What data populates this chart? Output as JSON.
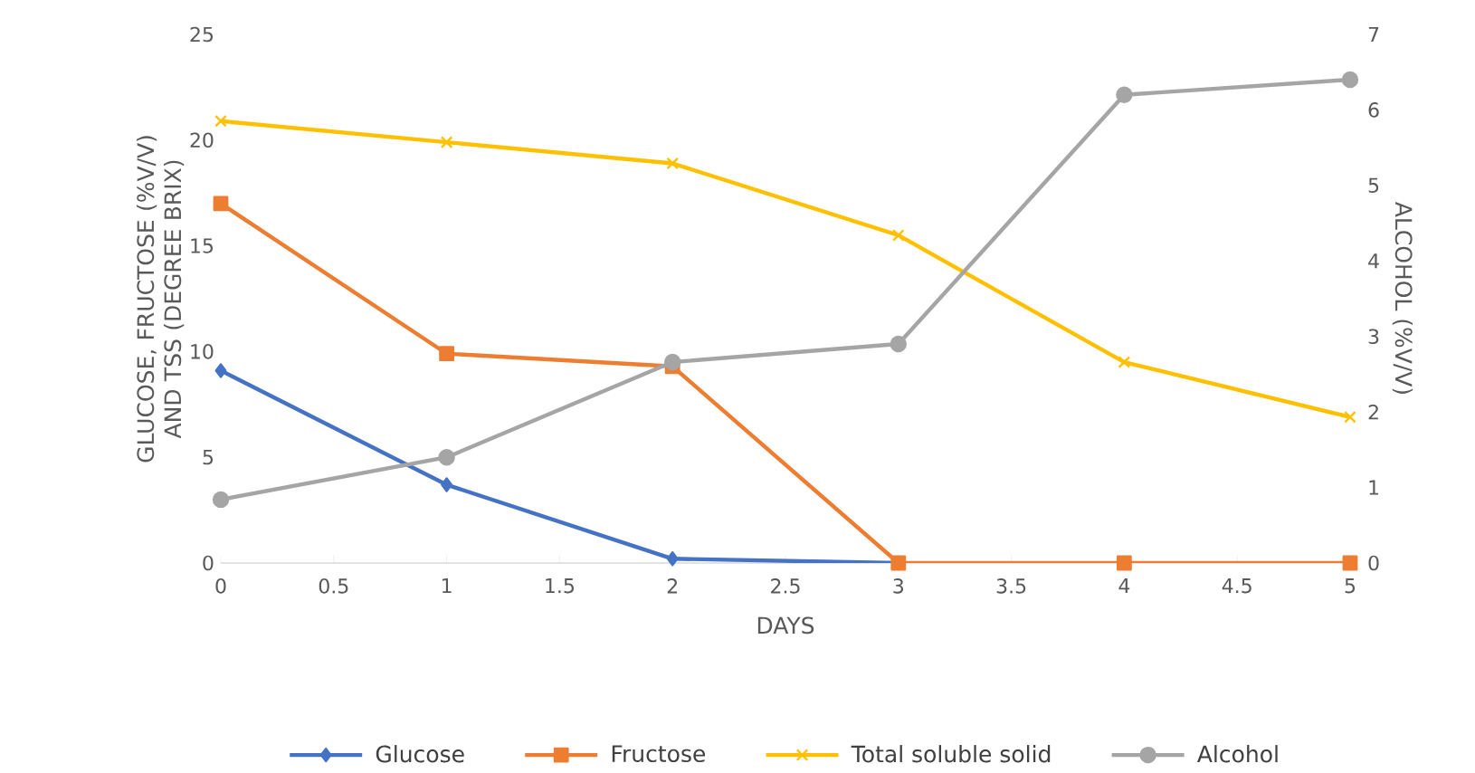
{
  "chart_data": {
    "type": "line",
    "x": [
      0,
      1,
      2,
      3,
      4,
      5
    ],
    "xlabel": "DAYS",
    "ylabel": "GLUCOSE, FRUCTOSE (%V/V) AND TSS (DEGREE BRIX)",
    "y2label": "ALCOHOL (%V/V)",
    "xlim": [
      0,
      5
    ],
    "xticks": [
      0,
      0.5,
      1,
      1.5,
      2,
      2.5,
      3,
      3.5,
      4,
      4.5,
      5
    ],
    "ylim": [
      0,
      25
    ],
    "yticks": [
      0,
      5,
      10,
      15,
      20,
      25
    ],
    "y2lim": [
      0,
      7
    ],
    "y2ticks": [
      0,
      1,
      2,
      3,
      4,
      5,
      6,
      7
    ],
    "grid": false,
    "legend": "bottom",
    "series": [
      {
        "name": "Glucose",
        "color": "#4472c4",
        "marker": "diamond",
        "values": [
          9.1,
          3.7,
          0.2,
          0,
          null,
          null
        ]
      },
      {
        "name": "Fructose",
        "color": "#ed7d31",
        "marker": "square",
        "values": [
          17,
          9.9,
          9.3,
          0,
          0,
          0
        ]
      },
      {
        "name": "Total soluble solid",
        "color": "#ffc000",
        "marker": "cross",
        "values": [
          20.9,
          19.9,
          18.9,
          15.5,
          9.5,
          6.9
        ]
      },
      {
        "name": "Alcohol",
        "color": "#a5a5a5",
        "marker": "circle",
        "axis": "y2",
        "values": [
          0.84,
          1.4,
          2.66,
          2.9,
          6.2,
          6.4
        ]
      }
    ]
  }
}
